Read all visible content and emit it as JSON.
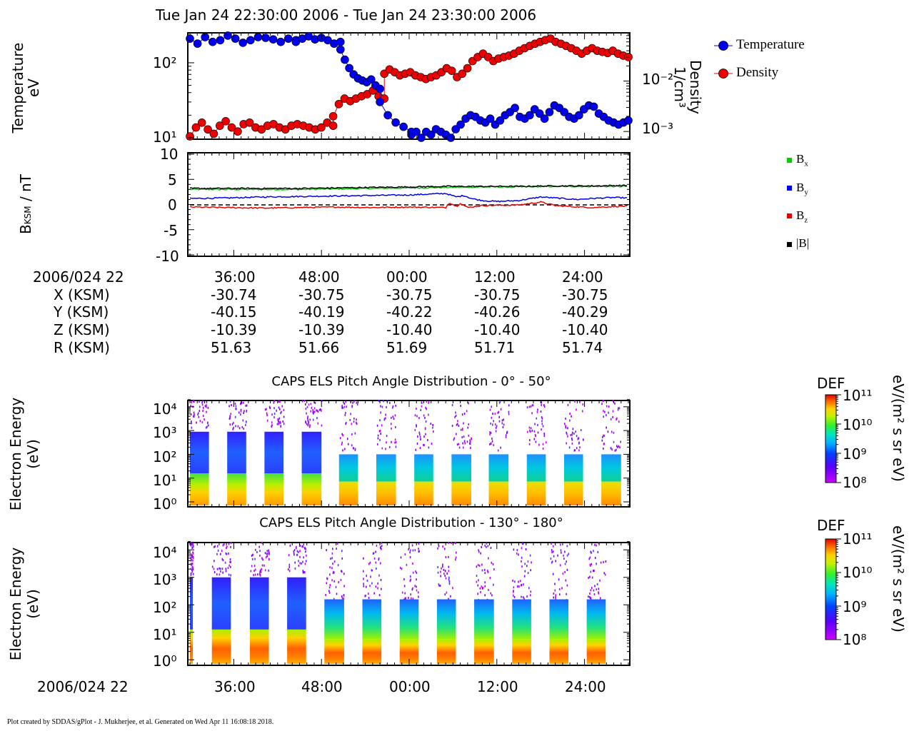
{
  "page": {
    "title": "Tue Jan 24 22:30:00 2006 - Tue Jan 24 23:30:00 2006",
    "footer": "Plot created by SDDAS/gPlot - J. Mukherjee, et al.  Generated on Wed Apr 11 16:08:18 2018."
  },
  "colors": {
    "temperature": "#0000ee",
    "density": "#ee0000",
    "bx": "#00cc00",
    "by": "#0000ee",
    "bz": "#ee0000",
    "b": "#000000"
  },
  "chart_data": [
    {
      "type": "scatter",
      "name": "plasma-moments",
      "ylabel": [
        "Temperature",
        "eV"
      ],
      "y2label": [
        "Density",
        "1/cm³"
      ],
      "yscale": "log",
      "ylim": [
        10,
        240
      ],
      "y2lim": [
        0.00075,
        0.085
      ],
      "yticks": [
        {
          "label": "10¹",
          "value": 10
        },
        {
          "label": "10²",
          "value": 100
        }
      ],
      "y2ticks": [
        {
          "label": "10⁻³",
          "value": 0.001
        },
        {
          "label": "10⁻²",
          "value": 0.01
        }
      ],
      "xlim_minutes": [
        30,
        90
      ],
      "legend": [
        {
          "label": "Temperature",
          "color": "#0000ee"
        },
        {
          "label": "Density",
          "color": "#ee0000"
        }
      ],
      "legend_position": "right",
      "series": [
        {
          "name": "Temperature",
          "color": "#0000ee",
          "axis": "left",
          "segments": [
            {
              "from": 30,
              "to": 44.5,
              "values": [
                210,
                180,
                220,
                190,
                200,
                230,
                210,
                185,
                200,
                220,
                215,
                205,
                190,
                210,
                200
              ]
            },
            {
              "from": 44.5,
              "to": 50.6,
              "values": [
                190,
                210,
                225,
                205,
                215,
                200,
                180,
                190
              ]
            },
            {
              "from": 50.6,
              "to": 56,
              "values": [
                150,
                110,
                85,
                70,
                62,
                58,
                55,
                60,
                50,
                45
              ]
            },
            {
              "from": 56,
              "to": 60.3,
              "values": [
                30,
                20,
                16,
                14,
                12
              ]
            },
            {
              "from": 60.3,
              "to": 90,
              "values": [
                11,
                12,
                10,
                12,
                11,
                13,
                12,
                11,
                10,
                13,
                15,
                18,
                20,
                19,
                17,
                16,
                18,
                15,
                17,
                20,
                22,
                25,
                19,
                18,
                20,
                24,
                21,
                18,
                22,
                27,
                25,
                22,
                19,
                18,
                20,
                24,
                27,
                26,
                21,
                19,
                17,
                16,
                15,
                16,
                17
              ]
            }
          ]
        },
        {
          "name": "Density",
          "color": "#ee0000",
          "axis": "right",
          "segments": [
            {
              "from": 30,
              "to": 49.6,
              "values": [
                0.0008,
                0.0012,
                0.0015,
                0.0011,
                0.0009,
                0.0013,
                0.0016,
                0.0012,
                0.001,
                0.0014,
                0.0015,
                0.0012,
                0.0011,
                0.0013,
                0.0014,
                0.0012,
                0.0011,
                0.0013,
                0.0014,
                0.0013,
                0.0012,
                0.0011,
                0.0012,
                0.0015,
                0.0013
              ]
            },
            {
              "from": 49.6,
              "to": 56.6,
              "values": [
                0.002,
                0.0035,
                0.0045,
                0.004,
                0.0045,
                0.005,
                0.0055,
                0.0065,
                0.005,
                0.0045
              ]
            },
            {
              "from": 56.6,
              "to": 90,
              "values": [
                0.014,
                0.017,
                0.015,
                0.013,
                0.014,
                0.015,
                0.013,
                0.012,
                0.011,
                0.012,
                0.013,
                0.015,
                0.018,
                0.016,
                0.012,
                0.014,
                0.018,
                0.025,
                0.03,
                0.035,
                0.03,
                0.025,
                0.028,
                0.03,
                0.032,
                0.035,
                0.04,
                0.045,
                0.05,
                0.055,
                0.06,
                0.065,
                0.07,
                0.06,
                0.055,
                0.05,
                0.045,
                0.04,
                0.035,
                0.04,
                0.045,
                0.04,
                0.038,
                0.036,
                0.04,
                0.035,
                0.032,
                0.03
              ]
            }
          ]
        }
      ]
    },
    {
      "type": "line",
      "name": "magnetic-field",
      "ylabel": "B_KSM / nT",
      "ylim": [
        -10,
        10
      ],
      "yticks": [
        10,
        5,
        0,
        -5,
        -10
      ],
      "zero_line": "dashed",
      "xlim_minutes": [
        30,
        90
      ],
      "legend_position": "right",
      "series": [
        {
          "name": "Bx",
          "label": "B",
          "sub": "x",
          "color": "#00cc00",
          "x": [
            30,
            35,
            40,
            45,
            50,
            55,
            60,
            65,
            70,
            75,
            80,
            85,
            90
          ],
          "values": [
            3.0,
            3.0,
            3.0,
            3.0,
            3.1,
            3.2,
            3.3,
            3.4,
            3.5,
            3.5,
            3.6,
            3.6,
            3.6
          ]
        },
        {
          "name": "By",
          "label": "B",
          "sub": "y",
          "color": "#0000ee",
          "x": [
            30,
            35,
            40,
            45,
            50,
            55,
            60,
            65,
            66.5,
            67.5,
            68.5,
            70,
            72,
            75,
            78,
            80,
            83,
            85,
            88,
            90
          ],
          "values": [
            1.2,
            1.3,
            1.5,
            1.6,
            1.7,
            1.8,
            1.9,
            2.2,
            1.5,
            1.8,
            1.2,
            0.8,
            0.6,
            0.8,
            1.5,
            1.3,
            1.0,
            1.2,
            1.4,
            1.3
          ]
        },
        {
          "name": "Bz",
          "label": "B",
          "sub": "z",
          "color": "#ee0000",
          "x": [
            30,
            35,
            40,
            45,
            50,
            55,
            60,
            65,
            65.5,
            66.5,
            67,
            68,
            70,
            75,
            78,
            80,
            82,
            85,
            88,
            90
          ],
          "values": [
            -0.5,
            -0.6,
            -0.7,
            -0.6,
            -0.5,
            -0.6,
            -0.5,
            -0.6,
            0.4,
            -0.4,
            0.3,
            -0.6,
            -0.2,
            -0.1,
            0.5,
            -0.2,
            -0.4,
            -0.6,
            -0.4,
            -0.3
          ]
        },
        {
          "name": "|B|",
          "label": "|B|",
          "sub": "",
          "color": "#000000",
          "x": [
            30,
            35,
            40,
            45,
            50,
            55,
            60,
            65,
            70,
            75,
            80,
            85,
            90
          ],
          "values": [
            3.2,
            3.2,
            3.2,
            3.2,
            3.3,
            3.4,
            3.5,
            3.6,
            3.6,
            3.6,
            3.7,
            3.7,
            3.8
          ]
        }
      ]
    },
    {
      "type": "heatmap",
      "name": "pad-0-50",
      "title": "CAPS ELS Pitch Angle Distribution - 0° - 50°",
      "ylabel": [
        "Electron Energy",
        "(eV)"
      ],
      "yscale": "log",
      "yticks": [
        "10⁴",
        "10³",
        "10²",
        "10¹",
        "10⁰"
      ],
      "colorbar": {
        "label": "DEF",
        "units": "eV/(m² s sr eV)",
        "ticks": [
          "10¹¹",
          "10¹⁰",
          "10⁹",
          "10⁸"
        ],
        "range": [
          100000000.0,
          100000000000.0
        ]
      },
      "blocks_minutes": [
        [
          30,
          32.6
        ],
        [
          35.1,
          37.7
        ],
        [
          40.2,
          42.8
        ],
        [
          45.3,
          48
        ],
        [
          50.4,
          53
        ],
        [
          55.5,
          58.2
        ],
        [
          60.7,
          63.3
        ],
        [
          65.8,
          68.5
        ],
        [
          70.9,
          73.6
        ],
        [
          76.1,
          78.7
        ],
        [
          81.2,
          83.8
        ],
        [
          86.3,
          89
        ]
      ]
    },
    {
      "type": "heatmap",
      "name": "pad-130-180",
      "title": "CAPS ELS Pitch Angle Distribution - 130° - 180°",
      "ylabel": [
        "Electron Energy",
        "(eV)"
      ],
      "yscale": "log",
      "yticks": [
        "10⁴",
        "10³",
        "10²",
        "10¹",
        "10⁰"
      ],
      "colorbar": {
        "label": "DEF",
        "units": "eV/(m² s sr eV)",
        "ticks": [
          "10¹¹",
          "10¹⁰",
          "10⁹",
          "10⁸"
        ],
        "range": [
          100000000.0,
          100000000000.0
        ]
      },
      "blocks_minutes": [
        [
          30,
          30.4
        ],
        [
          33,
          35.6
        ],
        [
          38.2,
          40.8
        ],
        [
          43.3,
          45.9
        ],
        [
          48.4,
          51.1
        ],
        [
          53.6,
          56.2
        ],
        [
          58.7,
          61.3
        ],
        [
          63.8,
          66.4
        ],
        [
          68.9,
          71.6
        ],
        [
          74.1,
          76.7
        ],
        [
          79.2,
          81.8
        ],
        [
          84.3,
          86.9
        ]
      ]
    }
  ],
  "ephemeris": {
    "labels": [
      "2006/024 22",
      "X (KSM)",
      "Y (KSM)",
      "Z (KSM)",
      "R (KSM)"
    ],
    "columns": [
      {
        "time": "36:00",
        "x": "-30.74",
        "y": "-40.15",
        "z": "-10.39",
        "r": "51.63"
      },
      {
        "time": "48:00",
        "x": "-30.75",
        "y": "-40.19",
        "z": "-10.39",
        "r": "51.66"
      },
      {
        "time": "00:00",
        "x": "-30.75",
        "y": "-40.22",
        "z": "-10.40",
        "r": "51.69"
      },
      {
        "time": "12:00",
        "x": "-30.75",
        "y": "-40.26",
        "z": "-10.40",
        "r": "51.71"
      },
      {
        "time": "24:00",
        "x": "-30.75",
        "y": "-40.29",
        "z": "-10.40",
        "r": "51.74"
      }
    ]
  },
  "bottom_axis": {
    "date": "2006/024 22",
    "ticks": [
      "36:00",
      "48:00",
      "00:00",
      "12:00",
      "24:00"
    ]
  }
}
